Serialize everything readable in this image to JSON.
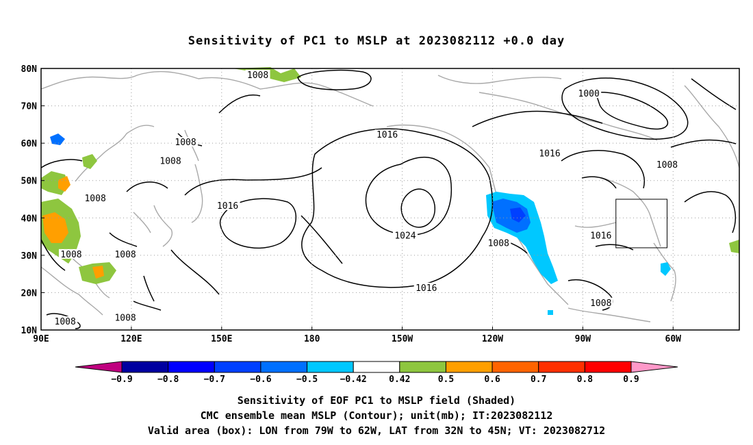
{
  "title": "Sensitivity of PC1 to MSLP at 2023082112 +0.0 day",
  "map": {
    "lon_labels": [
      "90E",
      "120E",
      "150E",
      "180",
      "150W",
      "120W",
      "90W",
      "60W"
    ],
    "lat_labels": [
      "80N",
      "70N",
      "60N",
      "50N",
      "40N",
      "30N",
      "20N",
      "10N"
    ],
    "contour_labels": [
      {
        "text": "1008",
        "lon": 162,
        "lat": 78
      },
      {
        "text": "1000",
        "lon": -88,
        "lat": 73
      },
      {
        "text": "1008",
        "lon": 138,
        "lat": 60
      },
      {
        "text": "1008",
        "lon": 133,
        "lat": 55
      },
      {
        "text": "1016",
        "lon": -155,
        "lat": 62
      },
      {
        "text": "1016",
        "lon": -101,
        "lat": 57
      },
      {
        "text": "1008",
        "lon": -62,
        "lat": 54
      },
      {
        "text": "1008",
        "lon": 108,
        "lat": 45
      },
      {
        "text": "1016",
        "lon": 152,
        "lat": 43
      },
      {
        "text": "1024",
        "lon": -149,
        "lat": 35
      },
      {
        "text": "1008",
        "lon": -118,
        "lat": 33
      },
      {
        "text": "1016",
        "lon": -84,
        "lat": 35
      },
      {
        "text": "1008",
        "lon": 100,
        "lat": 30
      },
      {
        "text": "1008",
        "lon": 118,
        "lat": 30
      },
      {
        "text": "1016",
        "lon": -142,
        "lat": 21
      },
      {
        "text": "1008",
        "lon": -84,
        "lat": 17
      },
      {
        "text": "1008",
        "lon": 98,
        "lat": 12
      },
      {
        "text": "1008",
        "lon": 118,
        "lat": 13
      }
    ],
    "valid_box": {
      "lon_w": -79,
      "lon_e": -62,
      "lat_s": 32,
      "lat_n": 45
    }
  },
  "colorbar": {
    "labels": [
      "−0.9",
      "−0.8",
      "−0.7",
      "−0.6",
      "−0.5",
      "−0.42",
      "0.42",
      "0.5",
      "0.6",
      "0.7",
      "0.8",
      "0.9"
    ],
    "colors": [
      "#bf007f",
      "#0000a0",
      "#0000ff",
      "#0040ff",
      "#0070ff",
      "#00c8ff",
      "#ffffff",
      "#8ec63f",
      "#ff9f00",
      "#ff6400",
      "#ff3000",
      "#ff0000",
      "#ff99c9"
    ]
  },
  "caption": {
    "line1": "Sensitivity of EOF PC1 to MSLP field (Shaded)",
    "line2": "CMC ensemble mean MSLP (Contour); unit(mb); IT:2023082112",
    "line3": "Valid area (box): LON from 79W to 62W, LAT from 32N to 45N; VT: 2023082712"
  }
}
